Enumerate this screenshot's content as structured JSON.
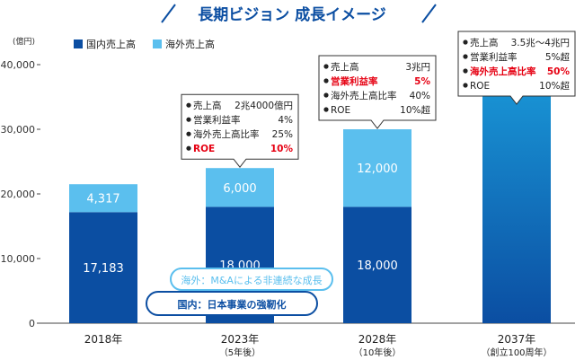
{
  "chart_data": {
    "type": "bar",
    "title": "長期ビジョン 成長イメージ",
    "unit": "(億円)",
    "categories": [
      {
        "label": "2018年",
        "sub": ""
      },
      {
        "label": "2023年",
        "sub": "（5年後）"
      },
      {
        "label": "2028年",
        "sub": "（10年後）"
      },
      {
        "label": "2037年",
        "sub": "（創立100周年）"
      }
    ],
    "series": [
      {
        "name": "国内売上高",
        "color": "#0b4ea2",
        "values": [
          17183,
          18000,
          18000,
          null
        ],
        "labels": [
          "17,183",
          "18,000",
          "18,000",
          ""
        ]
      },
      {
        "name": "海外売上高",
        "color": "#5bbfee",
        "values": [
          4317,
          6000,
          12000,
          null
        ],
        "labels": [
          "4,317",
          "6,000",
          "12,000",
          ""
        ]
      }
    ],
    "vision_bar": {
      "category_index": 3,
      "value_min": 35000,
      "value_max": 40000,
      "color_top": "#1a9ad9",
      "color_bottom": "#0b4ea2"
    },
    "ylim": [
      0,
      40000
    ],
    "yticks": [
      "0",
      "10,000",
      "20,000",
      "30,000",
      "40,000"
    ],
    "ytick_values": [
      0,
      10000,
      20000,
      30000,
      40000
    ],
    "annotations": [
      {
        "category_index": 1,
        "anchor_value": 24000,
        "rows": [
          {
            "label": "売上高",
            "value": "2兆4000億円",
            "highlight": false
          },
          {
            "label": "営業利益率",
            "value": "4%",
            "highlight": false
          },
          {
            "label": "海外売上高比率",
            "value": "25%",
            "highlight": false
          },
          {
            "label": "ROE",
            "value": "10%",
            "highlight": true
          }
        ]
      },
      {
        "category_index": 2,
        "anchor_value": 30000,
        "rows": [
          {
            "label": "売上高",
            "value": "3兆円",
            "highlight": false
          },
          {
            "label": "営業利益率",
            "value": "5%",
            "highlight": true
          },
          {
            "label": "海外売上高比率",
            "value": "40%",
            "highlight": false
          },
          {
            "label": "ROE",
            "value": "10%超",
            "highlight": false
          }
        ]
      },
      {
        "category_index": 3,
        "anchor_value": 35000,
        "rows": [
          {
            "label": "売上高",
            "value": "3.5兆～4兆円",
            "highlight": false
          },
          {
            "label": "営業利益率",
            "value": "5%超",
            "highlight": false
          },
          {
            "label": "海外売上高比率",
            "value": "50%",
            "highlight": true
          },
          {
            "label": "ROE",
            "value": "10%超",
            "highlight": false
          }
        ]
      }
    ],
    "strategy_labels": [
      {
        "text": "海外：M&Aによる非連続な成長",
        "color": "#5bbfee"
      },
      {
        "text": "国内：日本事業の強靭化",
        "color": "#0b4ea2"
      }
    ],
    "highlight_color": "#e60012",
    "grid": false,
    "legend_position": "top-left"
  }
}
